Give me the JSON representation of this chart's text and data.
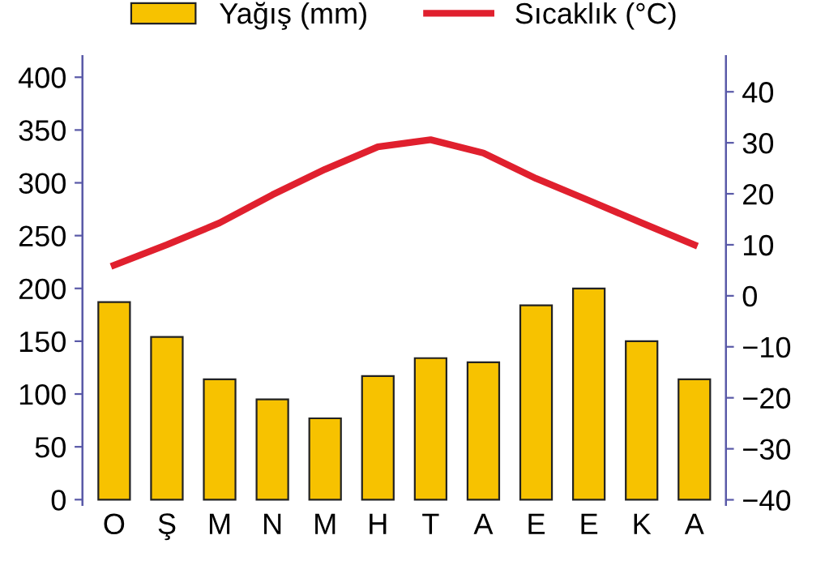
{
  "chart_data": {
    "type": "bar",
    "categories": [
      "O",
      "Ş",
      "M",
      "N",
      "M",
      "H",
      "T",
      "A",
      "E",
      "E",
      "K",
      "A"
    ],
    "series": [
      {
        "name": "Yağış (mm)",
        "color": "#f7c200",
        "values": [
          187,
          154,
          114,
          95,
          77,
          117,
          134,
          130,
          184,
          200,
          150,
          114
        ]
      },
      {
        "name": "Sıcaklık (°C)",
        "type": "line",
        "axis": "y2",
        "color": "#e0202e",
        "values": [
          6,
          10,
          14.3,
          19.8,
          24.8,
          29.2,
          30.6,
          28,
          23,
          18.7,
          14.3,
          10
        ]
      }
    ],
    "ylim": [
      -5,
      420
    ],
    "yticks": [
      0,
      50,
      100,
      150,
      200,
      250,
      300,
      350,
      400
    ],
    "y2lim": [
      -41,
      47
    ],
    "y2ticks": [
      -40,
      -30,
      -20,
      -10,
      0,
      10,
      20,
      30,
      40
    ],
    "legend": "top",
    "grid": false,
    "marker": "none",
    "line_style": "solid"
  }
}
